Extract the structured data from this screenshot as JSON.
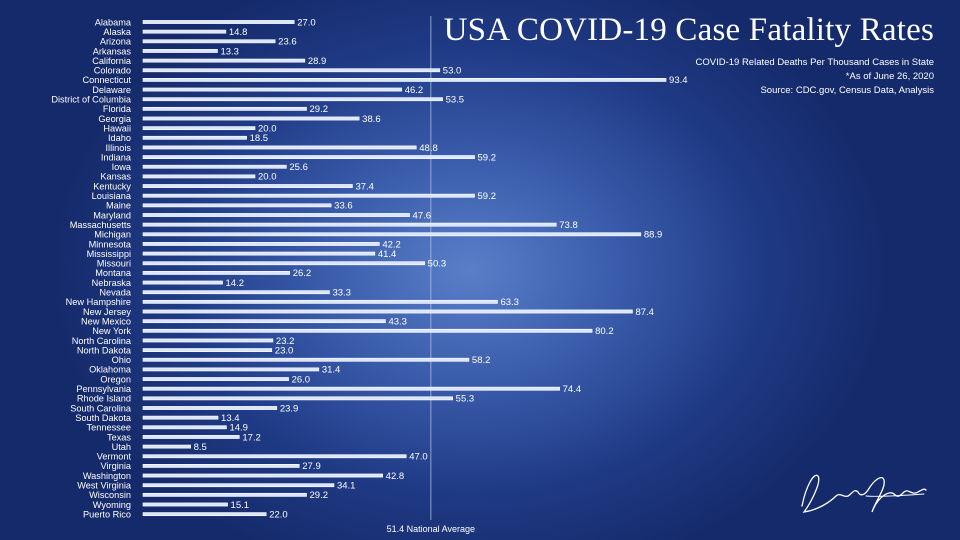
{
  "header": {
    "title": "USA COVID-19 Case Fatality Rates",
    "subtitle": "COVID-19 Related Deaths Per Thousand Cases in State",
    "date_note": "*As of  June 26, 2020",
    "source": "Source: CDC.gov, Census Data, Analysis"
  },
  "colors": {
    "bar_fill": "#dce6fa",
    "bar_edge": "#ffffff",
    "text": "#ffffff",
    "avg_line": "#a9bde6"
  },
  "signature": {
    "icon": "handwritten-signature"
  },
  "chart_data": {
    "type": "bar",
    "orientation": "horizontal",
    "title": "USA COVID-19 Case Fatality Rates",
    "xlim": [
      0,
      100
    ],
    "grid": false,
    "reference_line": {
      "value": 51.4,
      "label": "51.4 National Average"
    },
    "categories": [
      "Alabama",
      "Alaska",
      "Arizona",
      "Arkansas",
      "California",
      "Colorado",
      "Connecticut",
      "Delaware",
      "District of Columbia",
      "Florida",
      "Georgia",
      "Hawaii",
      "Idaho",
      "Illinois",
      "Indiana",
      "Iowa",
      "Kansas",
      "Kentucky",
      "Louisiana",
      "Maine",
      "Maryland",
      "Massachusetts",
      "Michigan",
      "Minnesota",
      "Mississippi",
      "Missouri",
      "Montana",
      "Nebraska",
      "Nevada",
      "New Hampshire",
      "New Jersey",
      "New Mexico",
      "New York",
      "North Carolina",
      "North Dakota",
      "Ohio",
      "Oklahoma",
      "Oregon",
      "Pennsylvania",
      "Rhode Island",
      "South Carolina",
      "South Dakota",
      "Tennessee",
      "Texas",
      "Utah",
      "Vermont",
      "Virginia",
      "Washington",
      "West Virginia",
      "Wisconsin",
      "Wyoming",
      "Puerto Rico"
    ],
    "values": [
      27.0,
      14.8,
      23.6,
      13.3,
      28.9,
      53.0,
      93.4,
      46.2,
      53.5,
      29.2,
      38.6,
      20.0,
      18.5,
      48.8,
      59.2,
      25.6,
      20.0,
      37.4,
      59.2,
      33.6,
      47.6,
      73.8,
      88.9,
      42.2,
      41.4,
      50.3,
      26.2,
      14.2,
      33.3,
      63.3,
      87.4,
      43.3,
      80.2,
      23.2,
      23.0,
      58.2,
      31.4,
      26.0,
      74.4,
      55.3,
      23.9,
      13.4,
      14.9,
      17.2,
      8.5,
      47.0,
      27.9,
      42.8,
      34.1,
      29.2,
      15.1,
      22.0
    ],
    "value_labels": [
      "27.0",
      "14.8",
      "23.6",
      "13.3",
      "28.9",
      "53.0",
      "93.4",
      "46.2",
      "53.5",
      "29.2",
      "38.6",
      "20.0",
      "18.5",
      "48.8",
      "59.2",
      "25.6",
      "20.0",
      "37.4",
      "59.2",
      "33.6",
      "47.6",
      "73.8",
      "88.9",
      "42.2",
      "41.4",
      "50.3",
      "26.2",
      "14.2",
      "33.3",
      "63.3",
      "87.4",
      "43.3",
      "80.2",
      "23.2",
      "23.0",
      "58.2",
      "31.4",
      "26.0",
      "74.4",
      "55.3",
      "23.9",
      "13.4",
      "14.9",
      "17.2",
      "8.5",
      "47.0",
      "27.9",
      "42.8",
      "34.1",
      "29.2",
      "15.1",
      "22.0"
    ]
  }
}
